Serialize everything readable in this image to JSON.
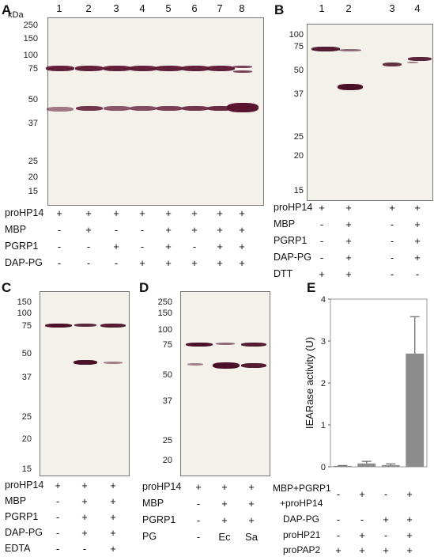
{
  "panels": {
    "A": {
      "label": "A",
      "kda_label": "kDa",
      "markers": [
        "250",
        "150",
        "100",
        "75",
        "50",
        "37",
        "25",
        "20",
        "15"
      ],
      "lanes": [
        "1",
        "2",
        "3",
        "4",
        "5",
        "6",
        "7",
        "8"
      ],
      "conditions": [
        {
          "name": "proHP14",
          "values": [
            "+",
            "+",
            "+",
            "+",
            "+",
            "+",
            "+",
            "+"
          ]
        },
        {
          "name": "MBP",
          "values": [
            "-",
            "+",
            "-",
            "-",
            "+",
            "+",
            "+",
            "+"
          ]
        },
        {
          "name": "PGRP1",
          "values": [
            "-",
            "-",
            "+",
            "-",
            "+",
            "-",
            "+",
            "+"
          ]
        },
        {
          "name": "DAP-PG",
          "values": [
            "-",
            "-",
            "-",
            "+",
            "+",
            "+",
            "+",
            "+"
          ]
        }
      ]
    },
    "B": {
      "label": "B",
      "markers": [
        "100",
        "75",
        "50",
        "37",
        "25",
        "20",
        "15"
      ],
      "lanes": [
        "1",
        "2",
        "3",
        "4"
      ],
      "conditions": [
        {
          "name": "proHP14",
          "values": [
            "+",
            "+",
            "+",
            "+"
          ]
        },
        {
          "name": "MBP",
          "values": [
            "-",
            "+",
            "-",
            "+"
          ]
        },
        {
          "name": "PGRP1",
          "values": [
            "-",
            "+",
            "-",
            "+"
          ]
        },
        {
          "name": "DAP-PG",
          "values": [
            "-",
            "+",
            "-",
            "+"
          ]
        },
        {
          "name": "DTT",
          "values": [
            "+",
            "+",
            "-",
            "-"
          ]
        }
      ]
    },
    "C": {
      "label": "C",
      "markers": [
        "150",
        "100",
        "75",
        "50",
        "37",
        "25",
        "20",
        "15"
      ],
      "conditions": [
        {
          "name": "proHP14",
          "values": [
            "+",
            "+",
            "+"
          ]
        },
        {
          "name": "MBP",
          "values": [
            "-",
            "+",
            "+"
          ]
        },
        {
          "name": "PGRP1",
          "values": [
            "-",
            "+",
            "+"
          ]
        },
        {
          "name": "DAP-PG",
          "values": [
            "-",
            "+",
            "+"
          ]
        },
        {
          "name": "EDTA",
          "values": [
            "-",
            "-",
            "+"
          ]
        }
      ]
    },
    "D": {
      "label": "D",
      "markers": [
        "250",
        "150",
        "100",
        "75",
        "50",
        "37",
        "25",
        "20"
      ],
      "conditions": [
        {
          "name": "proHP14",
          "values": [
            "+",
            "+",
            "+"
          ]
        },
        {
          "name": "MBP",
          "values": [
            "-",
            "+",
            "+"
          ]
        },
        {
          "name": "PGRP1",
          "values": [
            "-",
            "+",
            "+"
          ]
        },
        {
          "name": "PG",
          "values": [
            "-",
            "Ec",
            "Sa"
          ]
        }
      ]
    },
    "E": {
      "label": "E",
      "conditions": [
        {
          "name": "MBP+PGRP1",
          "values": [
            "-",
            "+",
            "-",
            "+"
          ]
        },
        {
          "name": "+proHP14",
          "values": []
        },
        {
          "name": "DAP-PG",
          "values": [
            "-",
            "-",
            "+",
            "+"
          ]
        },
        {
          "name": "proHP21",
          "values": [
            "-",
            "+",
            "-",
            "+"
          ]
        },
        {
          "name": "proPAP2",
          "values": [
            "+",
            "+",
            "+",
            "+"
          ]
        }
      ]
    }
  },
  "chart_data": {
    "type": "bar",
    "ylabel": "IEARase activity (U)",
    "ylim": [
      0,
      4
    ],
    "yticks": [
      "0",
      "1",
      "2",
      "3",
      "4"
    ],
    "values": [
      0.02,
      0.08,
      0.04,
      2.7
    ],
    "errors": [
      0.01,
      0.05,
      0.03,
      0.88
    ],
    "bar_color": "#8c8c8c"
  }
}
